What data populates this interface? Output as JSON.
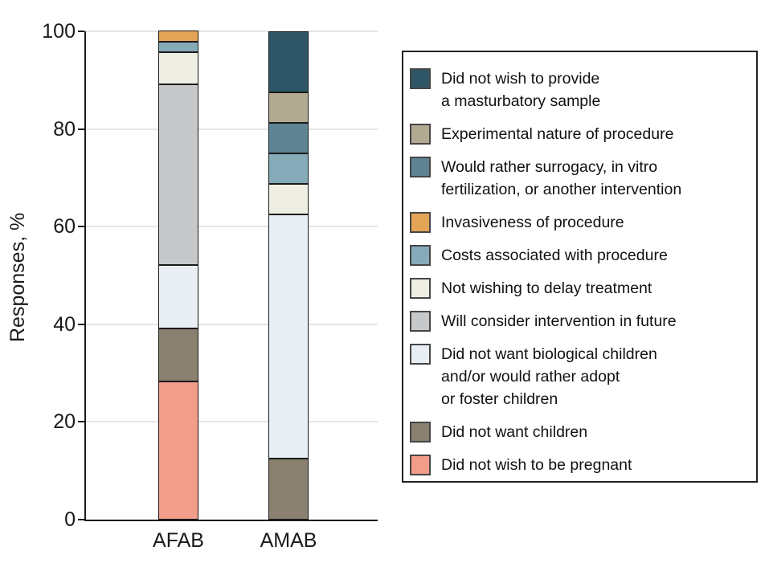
{
  "chart_data": {
    "type": "bar",
    "stacked": true,
    "title": "",
    "xlabel": "",
    "ylabel": "Responses, %",
    "ylim": [
      0,
      100
    ],
    "yticks": [
      0,
      20,
      40,
      60,
      80,
      100
    ],
    "grid": true,
    "legend_position": "right",
    "categories": [
      "AFAB",
      "AMAB"
    ],
    "series": [
      {
        "name": "Did not wish to be pregnant",
        "color": "#F29C8A",
        "values": [
          28.3,
          0
        ]
      },
      {
        "name": "Did not want children",
        "color": "#8A8070",
        "values": [
          10.9,
          12.5
        ]
      },
      {
        "name": "Did not want biological children and/or would rather adopt or foster children",
        "color": "#E8EEF3",
        "values": [
          13.0,
          50.0
        ]
      },
      {
        "name": "Will consider intervention in future",
        "color": "#C7C8CA",
        "values": [
          37.0,
          0
        ]
      },
      {
        "name": "Not wishing to delay treatment",
        "color": "#EFEEE2",
        "values": [
          6.5,
          6.25
        ]
      },
      {
        "name": "Costs associated with procedure",
        "color": "#85AAB8",
        "values": [
          2.2,
          6.25
        ]
      },
      {
        "name": "Invasiveness of procedure",
        "color": "#E3A455",
        "values": [
          2.2,
          0
        ]
      },
      {
        "name": "Would rather surrogacy, in vitro fertilization, or another intervention",
        "color": "#5E8494",
        "values": [
          0,
          6.25
        ]
      },
      {
        "name": "Experimental nature of procedure",
        "color": "#B3AA93",
        "values": [
          0,
          6.25
        ]
      },
      {
        "name": "Did not wish to provide a masturbatory sample",
        "color": "#2F5666",
        "values": [
          0,
          12.5
        ]
      }
    ]
  },
  "legend": {
    "items": [
      {
        "color": "#2F5666",
        "lines": [
          "Did not wish to provide",
          "a masturbatory sample"
        ]
      },
      {
        "color": "#B3AA93",
        "lines": [
          "Experimental nature of procedure"
        ]
      },
      {
        "color": "#5E8494",
        "lines": [
          "Would rather surrogacy, in vitro",
          "fertilization, or another intervention"
        ]
      },
      {
        "color": "#E3A455",
        "lines": [
          "Invasiveness of procedure"
        ]
      },
      {
        "color": "#85AAB8",
        "lines": [
          "Costs associated with procedure"
        ]
      },
      {
        "color": "#EFEEE2",
        "lines": [
          "Not wishing to delay treatment"
        ]
      },
      {
        "color": "#C7C8CA",
        "lines": [
          "Will consider intervention in future"
        ]
      },
      {
        "color": "#E8EEF3",
        "lines": [
          "Did not want biological children",
          "and/or would rather adopt",
          "or foster children"
        ]
      },
      {
        "color": "#8A8070",
        "lines": [
          "Did not want children"
        ]
      },
      {
        "color": "#F29C8A",
        "lines": [
          "Did not wish to be pregnant"
        ]
      }
    ]
  },
  "axis": {
    "y_tick_labels": [
      "0",
      "20",
      "40",
      "60",
      "80",
      "100"
    ],
    "x_category_labels": [
      "AFAB",
      "AMAB"
    ]
  },
  "style_colors": {
    "axis": "#1a1a1a",
    "gridline": "#e4e6e6",
    "bar_border": "#1a1a1a",
    "legend_border": "#222222"
  }
}
